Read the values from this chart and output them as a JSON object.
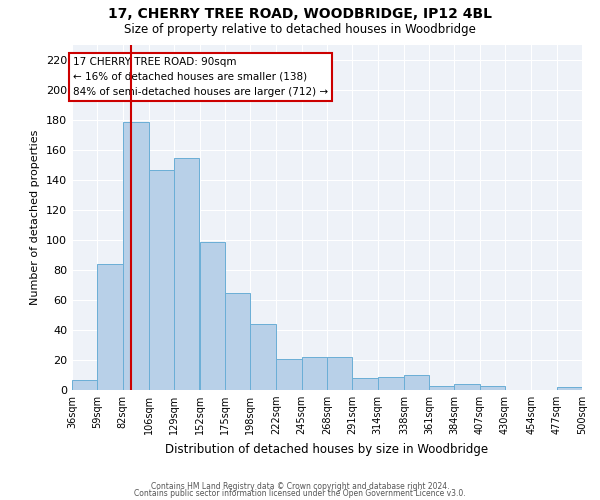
{
  "title1": "17, CHERRY TREE ROAD, WOODBRIDGE, IP12 4BL",
  "title2": "Size of property relative to detached houses in Woodbridge",
  "xlabel": "Distribution of detached houses by size in Woodbridge",
  "ylabel": "Number of detached properties",
  "footnote1": "Contains HM Land Registry data © Crown copyright and database right 2024.",
  "footnote2": "Contains public sector information licensed under the Open Government Licence v3.0.",
  "annotation_line1": "17 CHERRY TREE ROAD: 90sqm",
  "annotation_line2": "← 16% of detached houses are smaller (138)",
  "annotation_line3": "84% of semi-detached houses are larger (712) →",
  "bar_color": "#b8d0e8",
  "bar_edge_color": "#6aaed6",
  "vline_color": "#cc0000",
  "background_color": "#eef2f8",
  "bins": [
    36,
    59,
    82,
    106,
    129,
    152,
    175,
    198,
    222,
    245,
    268,
    291,
    314,
    338,
    361,
    384,
    407,
    430,
    454,
    477,
    500
  ],
  "bin_labels": [
    "36sqm",
    "59sqm",
    "82sqm",
    "106sqm",
    "129sqm",
    "152sqm",
    "175sqm",
    "198sqm",
    "222sqm",
    "245sqm",
    "268sqm",
    "291sqm",
    "314sqm",
    "338sqm",
    "361sqm",
    "384sqm",
    "407sqm",
    "430sqm",
    "454sqm",
    "477sqm",
    "500sqm"
  ],
  "counts": [
    7,
    84,
    179,
    147,
    155,
    99,
    65,
    44,
    21,
    22,
    22,
    8,
    9,
    10,
    3,
    4,
    3,
    0,
    0,
    2
  ],
  "property_size": 90,
  "ylim": [
    0,
    230
  ],
  "yticks": [
    0,
    20,
    40,
    60,
    80,
    100,
    120,
    140,
    160,
    180,
    200,
    220
  ]
}
